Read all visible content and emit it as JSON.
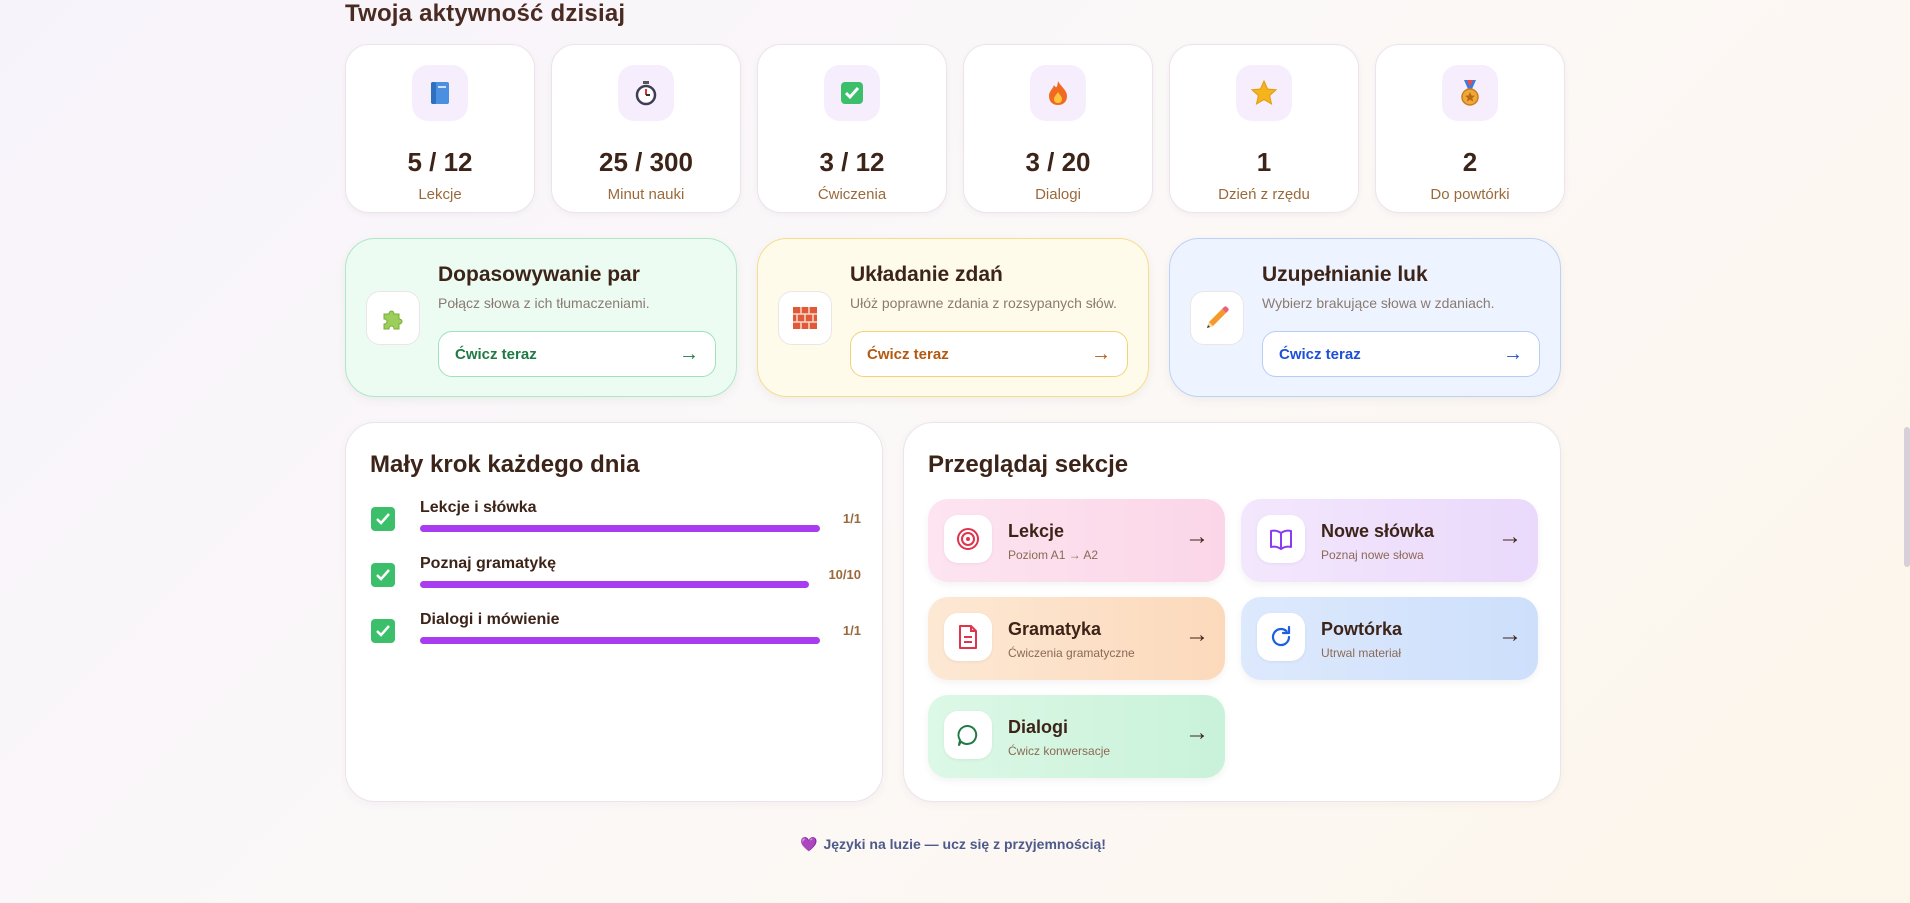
{
  "activity": {
    "title": "Twoja aktywność dzisiaj",
    "stats": [
      {
        "icon": "book-icon",
        "value": "5 / 12",
        "label": "Lekcje"
      },
      {
        "icon": "stopwatch-icon",
        "value": "25 / 300",
        "label": "Minut nauki"
      },
      {
        "icon": "checkmark-icon",
        "value": "3 / 12",
        "label": "Ćwiczenia"
      },
      {
        "icon": "fire-icon",
        "value": "3 / 20",
        "label": "Dialogi"
      },
      {
        "icon": "star-icon",
        "value": "1",
        "label": "Dzień z rzędu"
      },
      {
        "icon": "medal-icon",
        "value": "2",
        "label": "Do powtórki"
      }
    ]
  },
  "exercises": [
    {
      "icon": "puzzle-icon",
      "title": "Dopasowywanie par",
      "description": "Połącz słowa z ich tłumaczeniami.",
      "button": "Ćwicz teraz",
      "arrow": "→",
      "color": "#1f7a45"
    },
    {
      "icon": "bricks-icon",
      "title": "Układanie zdań",
      "description": "Ułóż poprawne zdania z rozsypanych słów.",
      "button": "Ćwicz teraz",
      "arrow": "→",
      "color": "#b45a10"
    },
    {
      "icon": "pencil-icon",
      "title": "Uzupełnianie luk",
      "description": "Wybierz brakujące słowa w zdaniach.",
      "button": "Ćwicz teraz",
      "arrow": "→",
      "color": "#1d4fd8"
    }
  ],
  "daily_goals": {
    "title": "Mały krok każdego dnia",
    "items": [
      {
        "label": "Lekcje i słówka",
        "count": "1/1",
        "progress": 1.0
      },
      {
        "label": "Poznaj gramatykę",
        "count": "10/10",
        "progress": 1.0
      },
      {
        "label": "Dialogi i mówienie",
        "count": "1/1",
        "progress": 1.0
      }
    ],
    "accent": "#a83cf0"
  },
  "sections": {
    "title": "Przeglądaj sekcje",
    "items": [
      {
        "icon": "target-icon",
        "title": "Lekcje",
        "subtitle": "Poziom A1 → A2",
        "arrow": "→"
      },
      {
        "icon": "open-book-icon",
        "title": "Nowe słówka",
        "subtitle": "Poznaj nowe słowa",
        "arrow": "→"
      },
      {
        "icon": "document-icon",
        "title": "Gramatyka",
        "subtitle": "Ćwiczenia gramatyczne",
        "arrow": "→"
      },
      {
        "icon": "refresh-icon",
        "title": "Powtórka",
        "subtitle": "Utrwal materiał",
        "arrow": "→"
      },
      {
        "icon": "chat-bubble-icon",
        "title": "Dialogi",
        "subtitle": "Ćwicz konwersacje",
        "arrow": "→"
      }
    ]
  },
  "footer": {
    "heart": "💜",
    "text": "Języki na luzie — ucz się z przyjemnością!"
  }
}
